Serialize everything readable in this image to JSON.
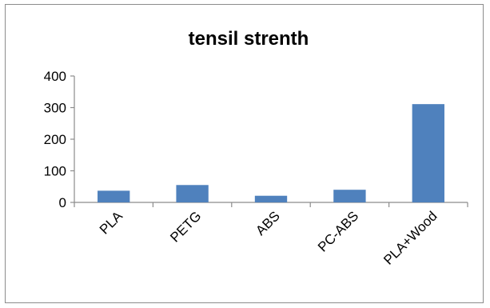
{
  "chart_data": {
    "type": "bar",
    "title": "tensil strenth",
    "xlabel": "",
    "ylabel": "",
    "categories": [
      "PLA",
      "PETG",
      "ABS",
      "PC-ABS",
      "PLA+Wood"
    ],
    "values": [
      37,
      55,
      21,
      40,
      311
    ],
    "ylim": [
      0,
      400
    ],
    "yticks": [
      "400",
      "300",
      "200",
      "100",
      "0"
    ],
    "ytick_values": [
      400,
      300,
      200,
      100,
      0
    ],
    "grid": false,
    "legend": "none",
    "bar_color": "#4f81bd",
    "axis_color": "#8c8c8c"
  }
}
